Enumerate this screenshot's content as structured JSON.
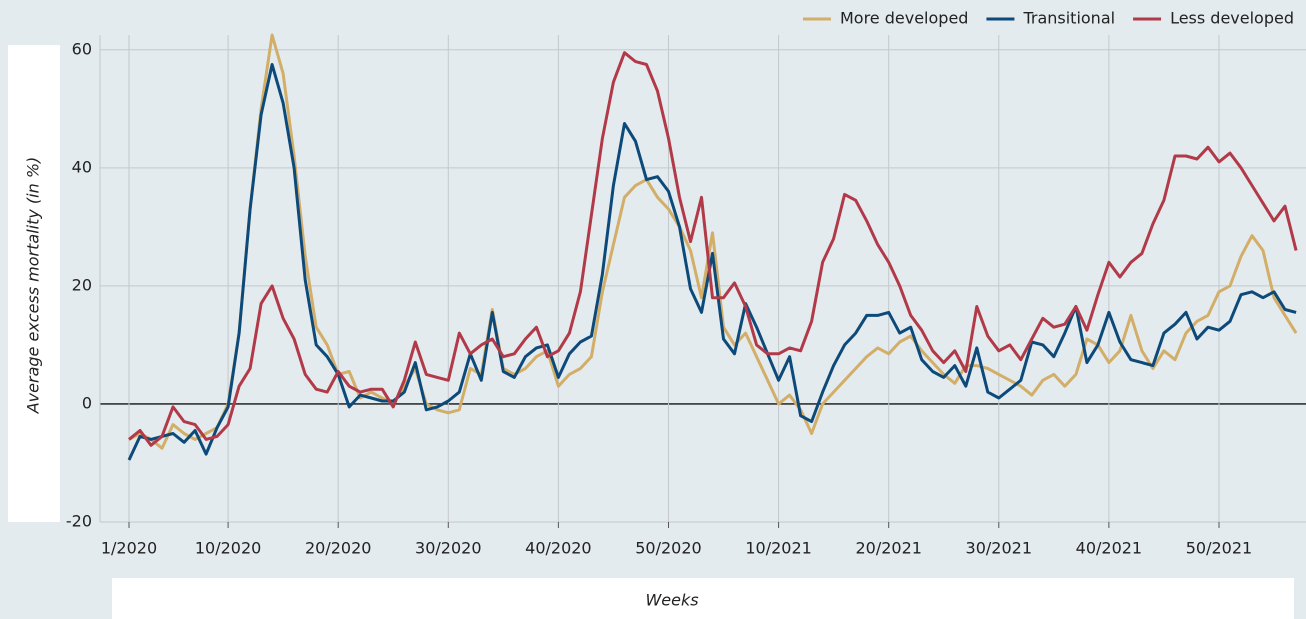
{
  "chart_data": {
    "type": "line",
    "x_label": "Weeks",
    "y_label": "Average excess mortality (in %)",
    "categories": [
      "1/2020",
      null,
      null,
      null,
      null,
      null,
      null,
      null,
      null,
      "10/2020",
      null,
      null,
      null,
      null,
      null,
      null,
      null,
      null,
      null,
      "20/2020",
      null,
      null,
      null,
      null,
      null,
      null,
      null,
      null,
      null,
      "30/2020",
      null,
      null,
      null,
      null,
      null,
      null,
      null,
      null,
      null,
      "40/2020",
      null,
      null,
      null,
      null,
      null,
      null,
      null,
      null,
      null,
      "50/2020",
      null,
      null,
      null,
      null,
      null,
      null,
      null,
      null,
      null,
      "10/2021",
      null,
      null,
      null,
      null,
      null,
      null,
      null,
      null,
      null,
      "20/2021",
      null,
      null,
      null,
      null,
      null,
      null,
      null,
      null,
      null,
      "30/2021",
      null,
      null,
      null,
      null,
      null,
      null,
      null,
      null,
      null,
      "40/2021",
      null,
      null,
      null,
      null,
      null,
      null,
      null,
      null,
      null,
      "50/2021",
      null,
      null,
      null,
      null,
      null,
      null,
      null
    ],
    "series": [
      {
        "name": "More developed",
        "color": "#d2ae68",
        "values": [
          -6,
          -5,
          -6,
          -7.5,
          -3.5,
          -5,
          -6,
          -5,
          -4,
          0,
          12,
          33,
          50,
          62.5,
          56,
          42,
          25,
          13,
          10,
          5,
          5.5,
          1,
          2,
          1,
          0,
          3,
          6,
          0,
          -1,
          -1.5,
          -1,
          6,
          5,
          16,
          6,
          5,
          6,
          8,
          9,
          3,
          5,
          6,
          8,
          19,
          27,
          35,
          37,
          38,
          35,
          33,
          30,
          26,
          18,
          29,
          13,
          10,
          12,
          8,
          4,
          0,
          1.5,
          -1,
          -5,
          0,
          2,
          4,
          6,
          8,
          9.5,
          8.5,
          10.5,
          11.5,
          9,
          7,
          5,
          3.5,
          6.5,
          6.5,
          6,
          5,
          4,
          3,
          1.5,
          4,
          5,
          3,
          5,
          11,
          10,
          7,
          9,
          15,
          9,
          6,
          9,
          7.5,
          12,
          14,
          15,
          19,
          20,
          25,
          28.5,
          26,
          18,
          15,
          12
        ]
      },
      {
        "name": "Transitional",
        "color": "#0d4a7a",
        "values": [
          -9.5,
          -5.5,
          -6,
          -5.5,
          -5,
          -6.5,
          -4.5,
          -8.5,
          -4,
          -0.5,
          12,
          33,
          49,
          57.5,
          51,
          40,
          21,
          10,
          8,
          5,
          -0.5,
          1.5,
          1,
          0.5,
          0.5,
          2,
          7,
          -1,
          -0.5,
          0.5,
          2,
          8.5,
          4,
          15.5,
          5.5,
          4.5,
          8,
          9.5,
          10,
          4.5,
          8.5,
          10.5,
          11.5,
          22,
          37,
          47.5,
          44.5,
          38,
          38.5,
          36,
          30,
          19.5,
          15.5,
          25.5,
          11,
          8.5,
          17,
          13,
          8.5,
          4,
          8,
          -2,
          -3,
          2,
          6.5,
          10,
          12,
          15,
          15,
          15.5,
          12,
          13,
          7.5,
          5.5,
          4.5,
          6.5,
          3,
          9.5,
          2,
          1,
          2.5,
          4,
          10.5,
          10,
          8,
          12,
          16.5,
          7,
          10,
          15.5,
          10.5,
          7.5,
          7,
          6.5,
          12,
          13.5,
          15.5,
          11,
          13,
          12.5,
          14,
          18.5,
          19,
          18,
          19,
          16,
          15.5
        ]
      },
      {
        "name": "Less developed",
        "color": "#b23a48",
        "values": [
          -6,
          -4.5,
          -7,
          -5.5,
          -0.5,
          -3,
          -3.5,
          -6,
          -5.5,
          -3.5,
          3,
          6,
          17,
          20,
          14.5,
          11,
          5,
          2.5,
          2,
          5.5,
          3,
          2,
          2.5,
          2.5,
          -0.5,
          4,
          10.5,
          5,
          4.5,
          4,
          12,
          8.5,
          10,
          11,
          8,
          8.5,
          11,
          13,
          8,
          9,
          12,
          19,
          32,
          45,
          54.5,
          59.5,
          58,
          57.5,
          53,
          45,
          35,
          27.5,
          35,
          18,
          18,
          20.5,
          16.5,
          10,
          8.5,
          8.5,
          9.5,
          9,
          14,
          24,
          28,
          35.5,
          34.5,
          31,
          27,
          24,
          20,
          15,
          12.5,
          9,
          7,
          9,
          5.5,
          16.5,
          11.5,
          9,
          10,
          7.5,
          11,
          14.5,
          13,
          13.5,
          16.5,
          12.5,
          18.5,
          24,
          21.5,
          24,
          25.5,
          30.5,
          34.5,
          42,
          42,
          41.5,
          43.5,
          41,
          42.5,
          40,
          37,
          34,
          31,
          33.5,
          26
        ]
      }
    ],
    "ylim": [
      -20,
      62.5
    ],
    "yticks": [
      -20,
      0,
      20,
      40,
      60
    ],
    "grid": true,
    "legend": "top-right"
  }
}
